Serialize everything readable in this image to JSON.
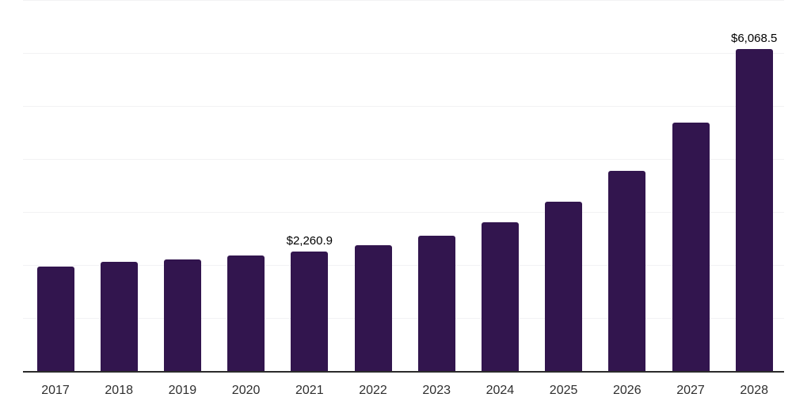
{
  "chart": {
    "bar_color": "#32154e",
    "grid_color": "#f2f2f4",
    "axis_color": "#2b2b2b",
    "data_label_color": "#000000",
    "tick_label_color": "#2f2f2f"
  },
  "chart_data": {
    "type": "bar",
    "title": "",
    "xlabel": "",
    "ylabel": "",
    "categories": [
      "2017",
      "2018",
      "2019",
      "2020",
      "2021",
      "2022",
      "2023",
      "2024",
      "2025",
      "2026",
      "2027",
      "2028"
    ],
    "values": [
      1975,
      2060,
      2110,
      2180,
      2260.9,
      2375,
      2555,
      2810,
      3200,
      3780,
      4680,
      6068.5
    ],
    "data_labels": [
      null,
      null,
      null,
      null,
      "$2,260.9",
      null,
      null,
      null,
      null,
      null,
      null,
      "$6,068.5"
    ],
    "ylim": [
      0,
      7000
    ],
    "grid_step": 1000,
    "grid": "horizontal",
    "legend": "none",
    "y_axis_labels": "none"
  }
}
